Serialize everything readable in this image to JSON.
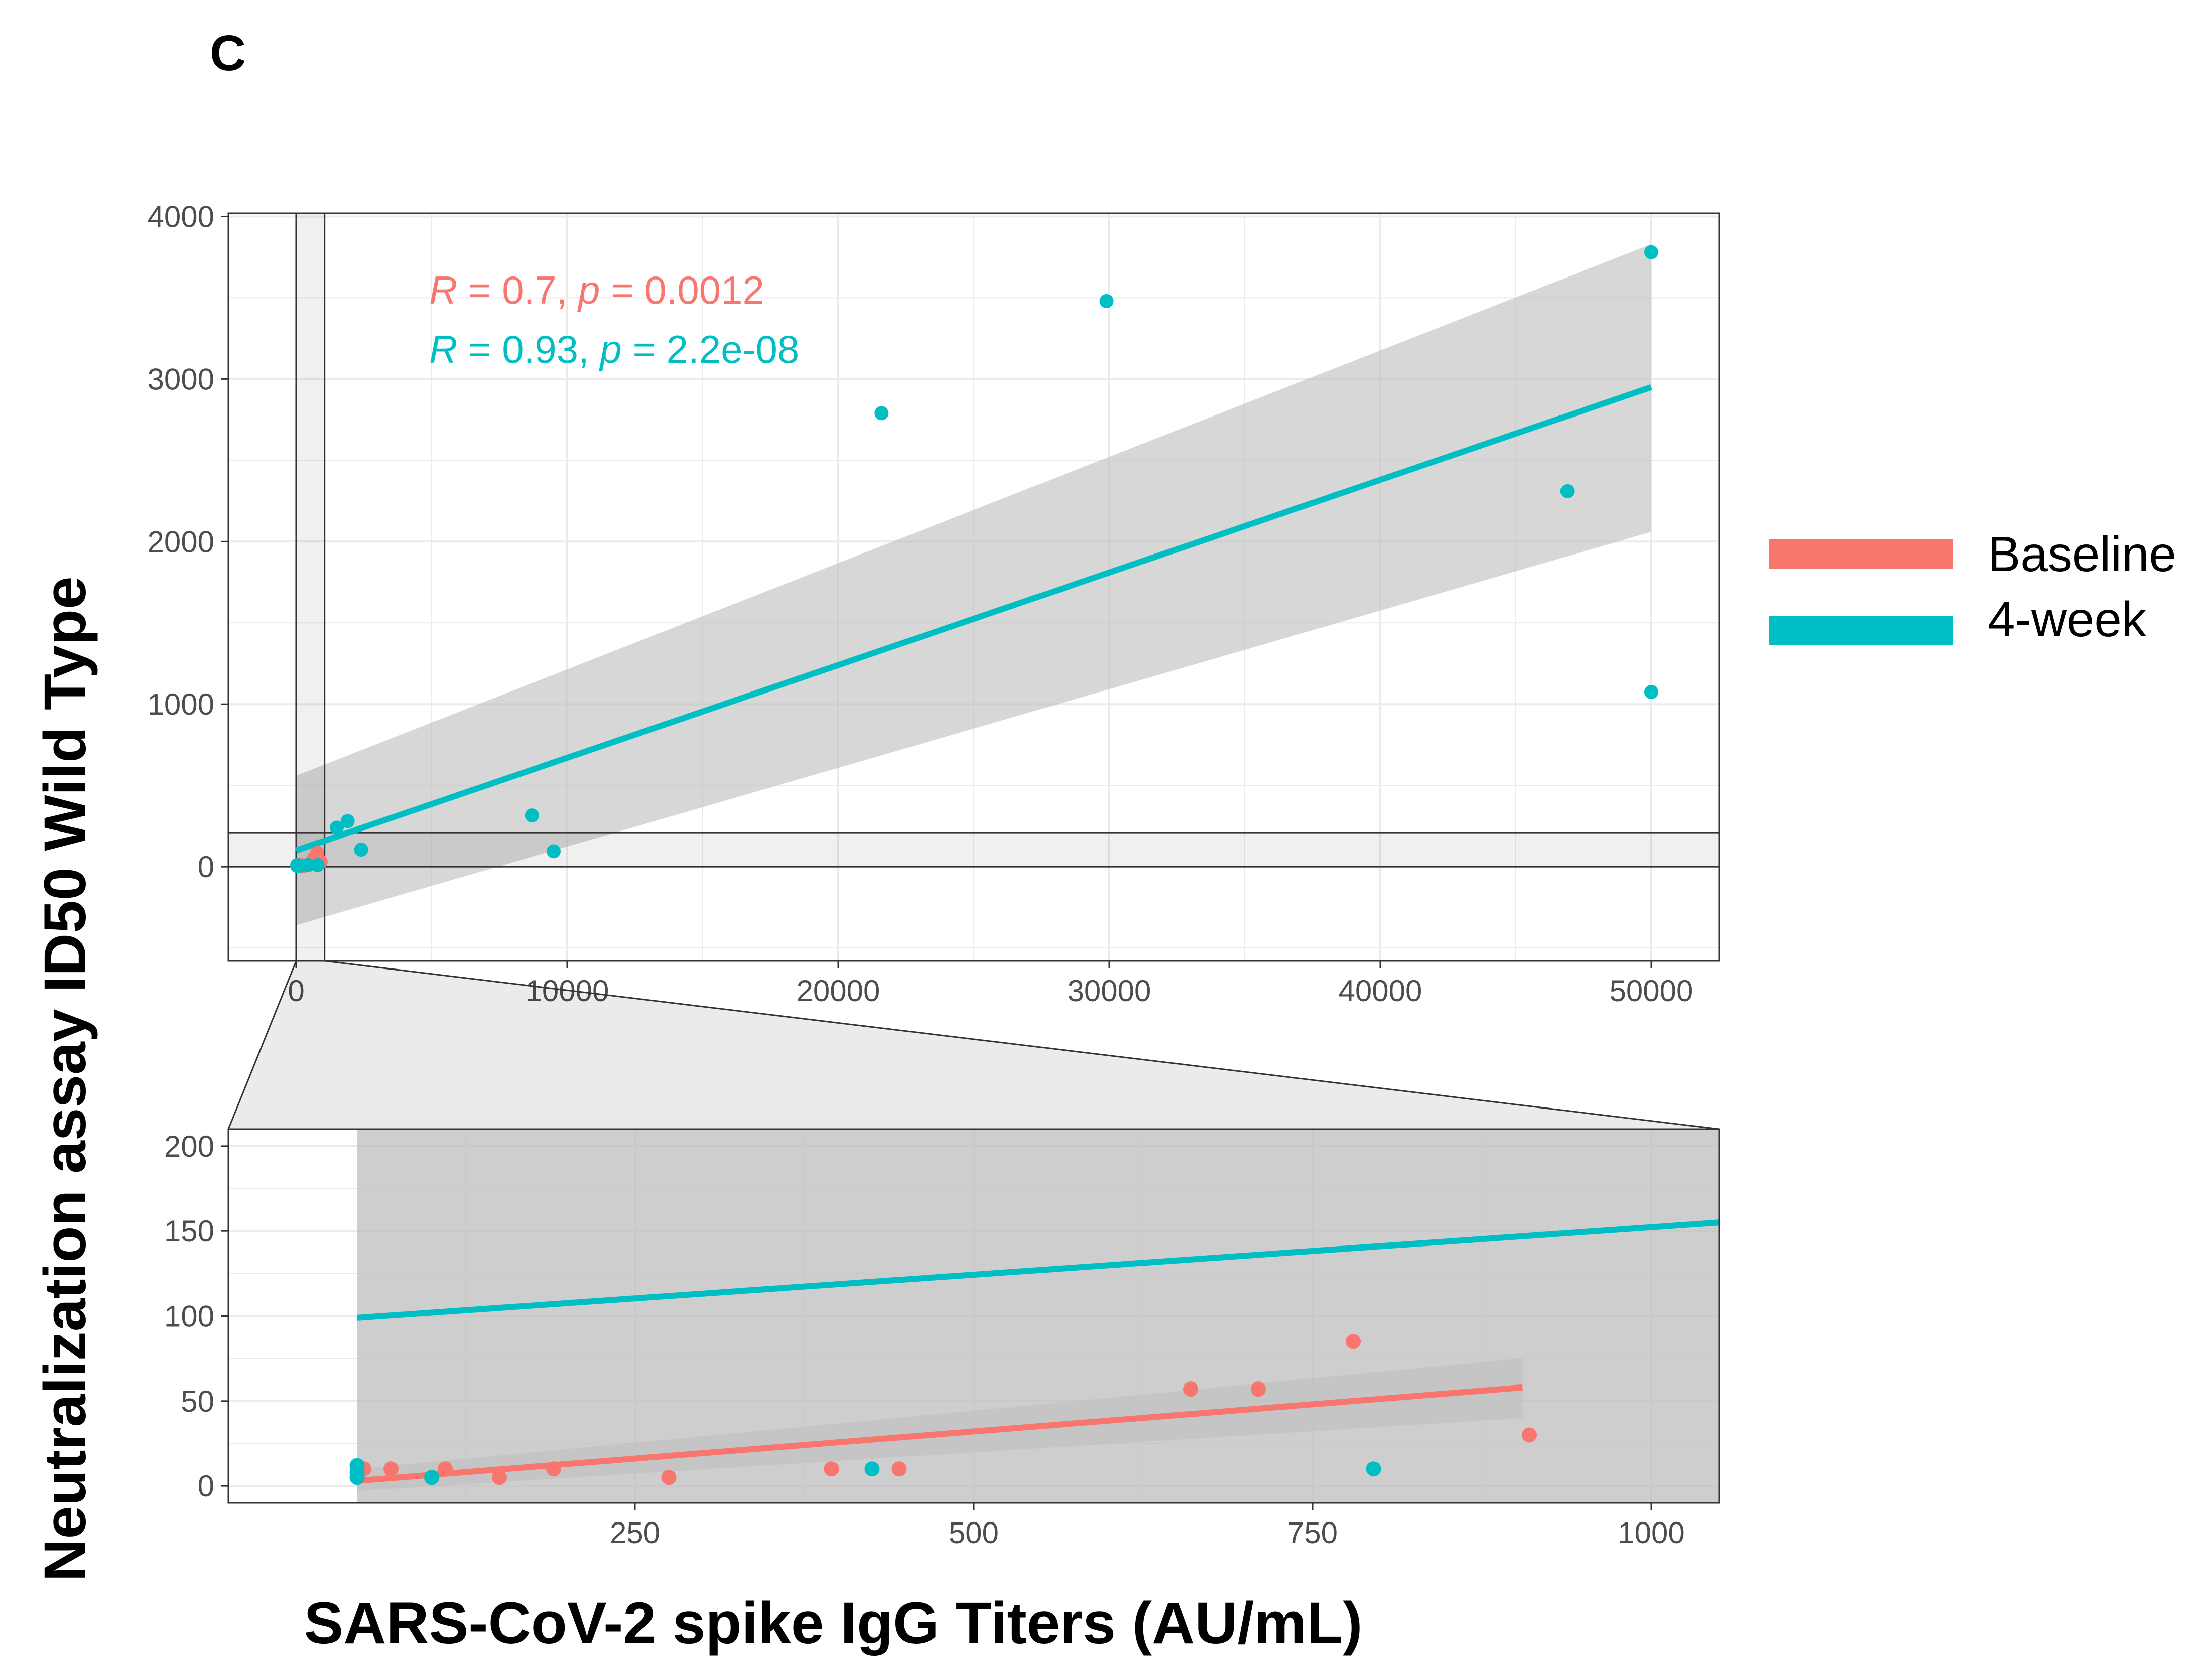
{
  "panel_label": "C",
  "colors": {
    "baseline": "#F8766D",
    "week4": "#00BFC4",
    "confidence_band": "#bdbdbd",
    "grid": "#ebebeb",
    "frame": "#333333"
  },
  "legend": {
    "items": [
      {
        "label": "Baseline",
        "color": "#F8766D"
      },
      {
        "label": "4-week",
        "color": "#00BFC4"
      }
    ],
    "position": "right"
  },
  "annotations": {
    "baseline_stats": {
      "r_symbol": "R",
      "r_text": " = 0.7, ",
      "p_symbol": "p",
      "p_text": " = 0.0012"
    },
    "week4_stats": {
      "r_symbol": "R",
      "r_text": " = 0.93, ",
      "p_symbol": "p",
      "p_text": " = 2.2e-08"
    }
  },
  "chart_data": [
    {
      "type": "scatter",
      "panel": "main",
      "xlabel": "SARS-CoV-2 spike IgG Titers (AU/mL)",
      "ylabel": "Neutralization assay ID50 Wild Type",
      "xlim": [
        -2500,
        52500
      ],
      "ylim": [
        -580,
        4020
      ],
      "x_ticks": [
        0,
        10000,
        20000,
        30000,
        40000,
        50000
      ],
      "y_ticks": [
        0,
        1000,
        2000,
        3000,
        4000
      ],
      "x_tick_labels": [
        "0",
        "10000",
        "20000",
        "30000",
        "40000",
        "50000"
      ],
      "y_tick_labels": [
        "0",
        "1000",
        "2000",
        "3000",
        "4000"
      ],
      "grid": true,
      "zoom_region": {
        "x": [
          0,
          1050
        ],
        "y": [
          0,
          210
        ]
      },
      "series": [
        {
          "name": "Baseline",
          "color": "#F8766D",
          "points": [
            [
              40,
              5
            ],
            [
              50,
              10
            ],
            [
              100,
              5
            ],
            [
              115,
              10
            ],
            [
              150,
              5
            ],
            [
              190,
              10
            ],
            [
              275,
              5
            ],
            [
              395,
              10
            ],
            [
              445,
              10
            ],
            [
              660,
              55
            ],
            [
              710,
              55
            ],
            [
              780,
              85
            ],
            [
              905,
              30
            ]
          ],
          "fit": {
            "x": [
              0,
              905
            ],
            "y": [
              2,
              58
            ]
          }
        },
        {
          "name": "4-week",
          "color": "#00BFC4",
          "points": [
            [
              40,
              5
            ],
            [
              40,
              10
            ],
            [
              100,
              5
            ],
            [
              425,
              10
            ],
            [
              790,
              10
            ],
            [
              1500,
              240
            ],
            [
              1900,
              280
            ],
            [
              2400,
              105
            ],
            [
              8700,
              315
            ],
            [
              9500,
              95
            ],
            [
              21600,
              2790
            ],
            [
              29900,
              3480
            ],
            [
              46900,
              2310
            ],
            [
              50000,
              3780
            ],
            [
              50000,
              1075
            ]
          ],
          "fit": {
            "x": [
              0,
              50000
            ],
            "y": [
              100,
              2950
            ]
          },
          "band": {
            "x": [
              0,
              50000
            ],
            "lower": [
              -360,
              2060
            ],
            "upper": [
              560,
              3830
            ]
          }
        }
      ]
    },
    {
      "type": "scatter",
      "panel": "zoom",
      "xlabel": "",
      "ylabel": "",
      "xlim": [
        -50,
        1050
      ],
      "ylim": [
        -10,
        210
      ],
      "x_ticks": [
        250,
        500,
        750,
        1000
      ],
      "y_ticks": [
        0,
        50,
        100,
        150,
        200
      ],
      "x_tick_labels": [
        "250",
        "500",
        "750",
        "1000"
      ],
      "y_tick_labels": [
        "0",
        "50",
        "100",
        "150",
        "200"
      ],
      "grid": true,
      "series": [
        {
          "name": "Baseline",
          "color": "#F8766D",
          "points": [
            [
              50,
              10
            ],
            [
              70,
              10
            ],
            [
              100,
              5
            ],
            [
              110,
              10
            ],
            [
              150,
              5
            ],
            [
              190,
              10
            ],
            [
              275,
              5
            ],
            [
              395,
              10
            ],
            [
              445,
              10
            ],
            [
              660,
              57
            ],
            [
              710,
              57
            ],
            [
              780,
              85
            ],
            [
              910,
              30
            ]
          ],
          "fit": {
            "x": [
              45,
              905
            ],
            "y": [
              3,
              58
            ]
          },
          "band": {
            "x": [
              45,
              905
            ],
            "lower": [
              -3,
              40
            ],
            "upper": [
              10,
              75
            ]
          }
        },
        {
          "name": "4-week",
          "color": "#00BFC4",
          "points": [
            [
              45,
              5
            ],
            [
              45,
              8
            ],
            [
              45,
              12
            ],
            [
              100,
              5
            ],
            [
              425,
              10
            ],
            [
              795,
              10
            ]
          ],
          "fit": {
            "x": [
              45,
              1050
            ],
            "y": [
              99,
              155
            ]
          }
        }
      ]
    }
  ]
}
